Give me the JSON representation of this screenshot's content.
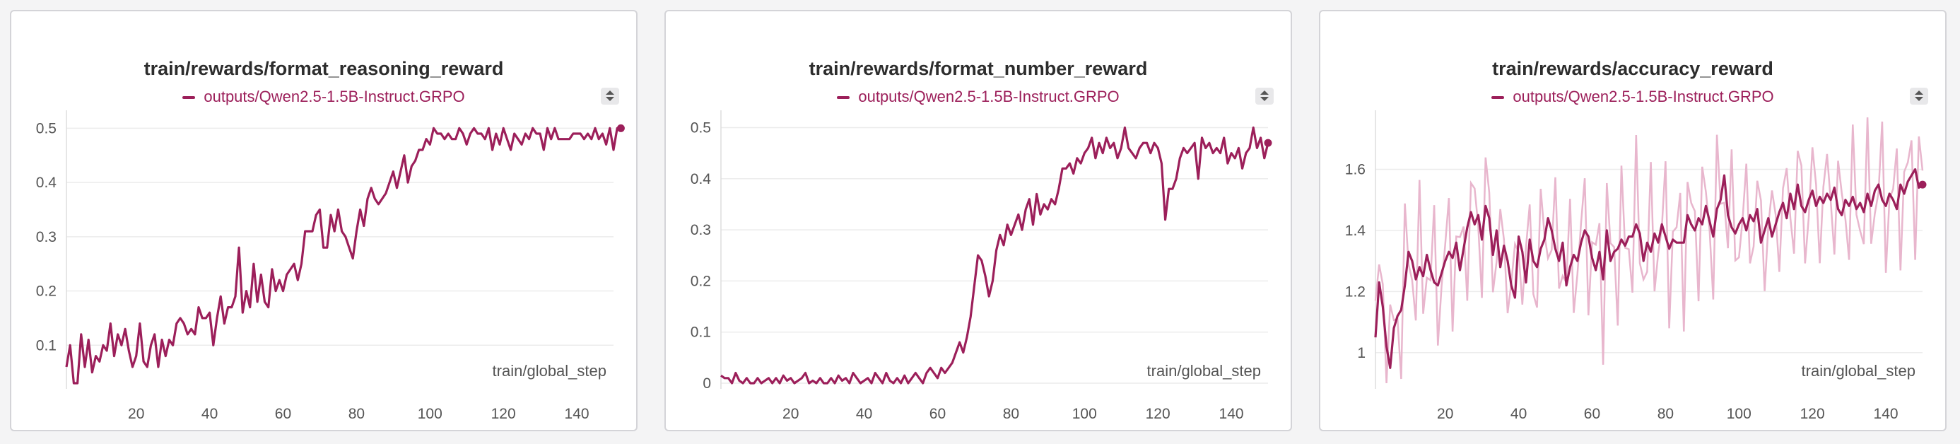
{
  "chart_data": [
    {
      "type": "line",
      "title": "train/rewards/format_reasoning_reward",
      "xlabel": "train/global_step",
      "ylabel": "",
      "xlim": [
        1,
        150
      ],
      "ylim": [
        0.03,
        0.52
      ],
      "xticks": [
        20,
        40,
        60,
        80,
        100,
        120,
        140
      ],
      "yticks": [
        0.1,
        0.2,
        0.3,
        0.4,
        0.5
      ],
      "ytick_labels": [
        "0.1",
        "0.2",
        "0.3",
        "0.4",
        "0.5"
      ],
      "grid": true,
      "legend": "top",
      "series": [
        {
          "name": "outputs/Qwen2.5-1.5B-Instruct.GRPO",
          "x_start": 1,
          "x_step": 1,
          "values": [
            0.06,
            0.1,
            0.03,
            0.03,
            0.12,
            0.06,
            0.11,
            0.05,
            0.08,
            0.07,
            0.1,
            0.09,
            0.14,
            0.08,
            0.12,
            0.1,
            0.13,
            0.09,
            0.06,
            0.08,
            0.14,
            0.07,
            0.06,
            0.1,
            0.12,
            0.06,
            0.11,
            0.08,
            0.11,
            0.1,
            0.14,
            0.15,
            0.14,
            0.12,
            0.13,
            0.12,
            0.17,
            0.15,
            0.15,
            0.16,
            0.1,
            0.15,
            0.19,
            0.14,
            0.17,
            0.17,
            0.19,
            0.28,
            0.16,
            0.2,
            0.17,
            0.25,
            0.18,
            0.23,
            0.18,
            0.17,
            0.24,
            0.2,
            0.22,
            0.2,
            0.23,
            0.24,
            0.25,
            0.22,
            0.25,
            0.31,
            0.31,
            0.31,
            0.34,
            0.35,
            0.28,
            0.28,
            0.34,
            0.31,
            0.35,
            0.31,
            0.3,
            0.28,
            0.26,
            0.31,
            0.35,
            0.32,
            0.37,
            0.39,
            0.37,
            0.36,
            0.37,
            0.38,
            0.4,
            0.42,
            0.39,
            0.42,
            0.45,
            0.4,
            0.43,
            0.44,
            0.46,
            0.46,
            0.48,
            0.47,
            0.5,
            0.49,
            0.49,
            0.48,
            0.49,
            0.48,
            0.48,
            0.5,
            0.49,
            0.47,
            0.49,
            0.5,
            0.49,
            0.49,
            0.48,
            0.5,
            0.46,
            0.49,
            0.47,
            0.5,
            0.48,
            0.46,
            0.49,
            0.48,
            0.47,
            0.49,
            0.48,
            0.5,
            0.49,
            0.49,
            0.46,
            0.5,
            0.48,
            0.5,
            0.48,
            0.48,
            0.48,
            0.48,
            0.49,
            0.49,
            0.49,
            0.48,
            0.49,
            0.48,
            0.5,
            0.48,
            0.49,
            0.47,
            0.5,
            0.46,
            0.5,
            0.5
          ]
        }
      ]
    },
    {
      "type": "line",
      "title": "train/rewards/format_number_reward",
      "xlabel": "train/global_step",
      "ylabel": "",
      "xlim": [
        1,
        150
      ],
      "ylim": [
        0,
        0.52
      ],
      "xticks": [
        20,
        40,
        60,
        80,
        100,
        120,
        140
      ],
      "yticks": [
        0,
        0.1,
        0.2,
        0.3,
        0.4,
        0.5
      ],
      "ytick_labels": [
        "0",
        "0.1",
        "0.2",
        "0.3",
        "0.4",
        "0.5"
      ],
      "grid": true,
      "legend": "top",
      "series": [
        {
          "name": "outputs/Qwen2.5-1.5B-Instruct.GRPO",
          "x_start": 1,
          "x_step": 1,
          "values": [
            0.015,
            0.01,
            0.01,
            0.0,
            0.02,
            0.005,
            0.0,
            0.01,
            0.0,
            0.0,
            0.01,
            0.0,
            0.005,
            0.01,
            0.0,
            0.01,
            0.0,
            0.015,
            0.005,
            0.01,
            0.0,
            0.005,
            0.01,
            0.02,
            0.0,
            0.005,
            0.0,
            0.01,
            0.0,
            0.0,
            0.01,
            0.0,
            0.015,
            0.005,
            0.01,
            0.0,
            0.02,
            0.01,
            0.0,
            0.005,
            0.01,
            0.0,
            0.02,
            0.01,
            0.0,
            0.02,
            0.005,
            0.0,
            0.01,
            0.0,
            0.015,
            0.0,
            0.01,
            0.02,
            0.01,
            0.0,
            0.02,
            0.03,
            0.02,
            0.01,
            0.03,
            0.02,
            0.03,
            0.04,
            0.06,
            0.08,
            0.06,
            0.09,
            0.13,
            0.19,
            0.25,
            0.24,
            0.21,
            0.17,
            0.2,
            0.26,
            0.29,
            0.27,
            0.31,
            0.29,
            0.31,
            0.33,
            0.3,
            0.34,
            0.36,
            0.31,
            0.37,
            0.33,
            0.35,
            0.34,
            0.36,
            0.35,
            0.38,
            0.42,
            0.42,
            0.43,
            0.41,
            0.44,
            0.43,
            0.45,
            0.46,
            0.48,
            0.44,
            0.47,
            0.45,
            0.48,
            0.46,
            0.47,
            0.44,
            0.46,
            0.5,
            0.46,
            0.45,
            0.44,
            0.46,
            0.47,
            0.47,
            0.45,
            0.47,
            0.46,
            0.43,
            0.32,
            0.38,
            0.38,
            0.4,
            0.44,
            0.46,
            0.45,
            0.46,
            0.47,
            0.4,
            0.48,
            0.46,
            0.47,
            0.45,
            0.46,
            0.45,
            0.48,
            0.43,
            0.45,
            0.44,
            0.46,
            0.42,
            0.45,
            0.46,
            0.5,
            0.46,
            0.48,
            0.44,
            0.47
          ]
        }
      ]
    },
    {
      "type": "line",
      "title": "train/rewards/accuracy_reward",
      "xlabel": "train/global_step",
      "ylabel": "",
      "xlim": [
        1,
        150
      ],
      "ylim": [
        0.9,
        1.77
      ],
      "xticks": [
        20,
        40,
        60,
        80,
        100,
        120,
        140
      ],
      "yticks": [
        1.0,
        1.2,
        1.4,
        1.6
      ],
      "ytick_labels": [
        "1",
        "1.2",
        "1.4",
        "1.6"
      ],
      "grid": true,
      "legend": "top",
      "series": [
        {
          "name": "outputs/Qwen2.5-1.5B-Instruct.GRPO",
          "x_start": 1,
          "x_step": 1,
          "values": [
            1.05,
            1.23,
            1.15,
            1.02,
            0.95,
            1.08,
            1.12,
            1.14,
            1.22,
            1.33,
            1.3,
            1.24,
            1.28,
            1.25,
            1.32,
            1.27,
            1.23,
            1.22,
            1.26,
            1.3,
            1.33,
            1.31,
            1.36,
            1.27,
            1.34,
            1.41,
            1.46,
            1.42,
            1.45,
            1.37,
            1.48,
            1.44,
            1.32,
            1.4,
            1.28,
            1.35,
            1.3,
            1.22,
            1.18,
            1.38,
            1.33,
            1.23,
            1.37,
            1.3,
            1.28,
            1.34,
            1.37,
            1.44,
            1.4,
            1.34,
            1.3,
            1.36,
            1.22,
            1.28,
            1.32,
            1.3,
            1.36,
            1.4,
            1.38,
            1.31,
            1.27,
            1.33,
            1.24,
            1.4,
            1.3,
            1.33,
            1.34,
            1.37,
            1.35,
            1.38,
            1.38,
            1.42,
            1.39,
            1.3,
            1.36,
            1.33,
            1.39,
            1.36,
            1.42,
            1.38,
            1.34,
            1.37,
            1.36,
            1.36,
            1.36,
            1.45,
            1.42,
            1.4,
            1.44,
            1.42,
            1.48,
            1.43,
            1.38,
            1.47,
            1.5,
            1.58,
            1.45,
            1.41,
            1.39,
            1.42,
            1.44,
            1.4,
            1.45,
            1.43,
            1.47,
            1.36,
            1.4,
            1.44,
            1.38,
            1.42,
            1.46,
            1.49,
            1.44,
            1.52,
            1.47,
            1.55,
            1.48,
            1.46,
            1.5,
            1.53,
            1.48,
            1.51,
            1.49,
            1.52,
            1.5,
            1.54,
            1.47,
            1.45,
            1.5,
            1.48,
            1.51,
            1.47,
            1.49,
            1.46,
            1.52,
            1.48,
            1.53,
            1.55,
            1.5,
            1.48,
            1.52,
            1.5,
            1.47,
            1.55,
            1.52,
            1.56,
            1.58,
            1.6,
            1.54,
            1.55
          ]
        }
      ]
    }
  ]
}
